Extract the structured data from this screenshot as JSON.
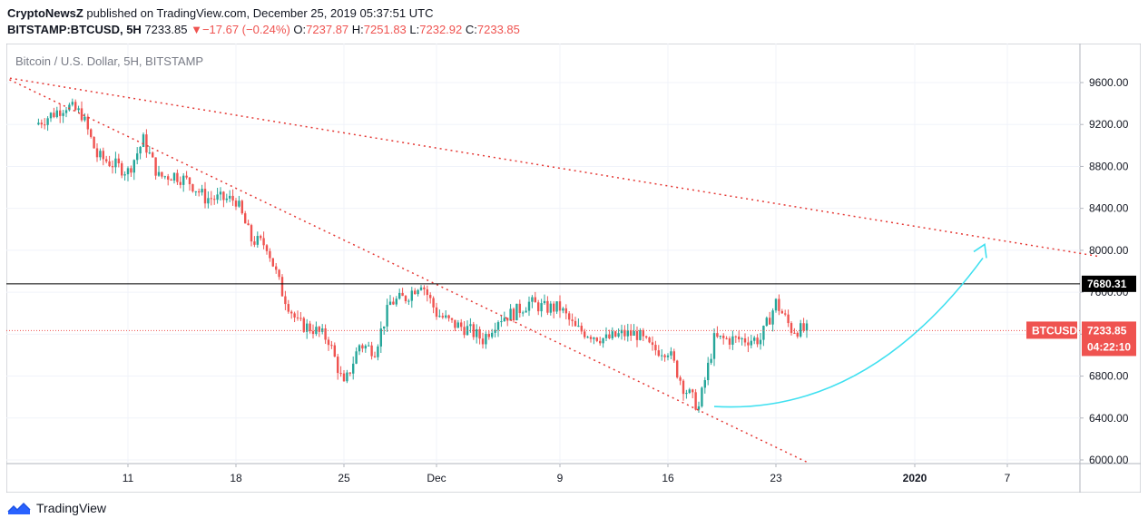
{
  "header": {
    "author": "CryptoNewsZ",
    "published_text": " published on TradingView.com, December 25, 2019 05:37:51 UTC",
    "symbol": "BITSTAMP:BTCUSD, 5H",
    "last": "7233.85",
    "change_arrow": "▼",
    "change": "−17.67 (−0.24%)",
    "o_label": "O:",
    "o_value": "7237.87",
    "h_label": "H:",
    "h_value": "7251.83",
    "l_label": "L:",
    "l_value": "7232.92",
    "c_label": "C:",
    "c_value": "7233.85"
  },
  "chart_title": "Bitcoin / U.S. Dollar, 5H, BITSTAMP",
  "footer": {
    "brand": "TradingView",
    "logo_icon": "tradingview-logo-icon"
  },
  "colors": {
    "up": "#26a69a",
    "down": "#ef5350",
    "trend": "#e53935",
    "curve": "#40e0f0",
    "level": "#000000"
  },
  "chart_data": {
    "type": "candlestick",
    "title": "Bitcoin / U.S. Dollar, 5H, BITSTAMP",
    "timeframe": "5H",
    "ylim": [
      6000,
      9800
    ],
    "y_ticks": [
      "9600.00",
      "9200.00",
      "8800.00",
      "8400.00",
      "8000.00",
      "7600.00",
      "7200.00",
      "6800.00",
      "6400.00",
      "6000.00"
    ],
    "x_ticks": [
      "11",
      "18",
      "25",
      "Dec",
      "9",
      "16",
      "23",
      "2020",
      "7"
    ],
    "grid": true,
    "price_path": [
      {
        "date": "2019-11-05",
        "close": 9200
      },
      {
        "date": "2019-11-07",
        "close": 9380
      },
      {
        "date": "2019-11-08",
        "close": 9300
      },
      {
        "date": "2019-11-09",
        "close": 8900
      },
      {
        "date": "2019-11-11",
        "close": 8750
      },
      {
        "date": "2019-11-12",
        "close": 9050
      },
      {
        "date": "2019-11-13",
        "close": 8700
      },
      {
        "date": "2019-11-14",
        "close": 8720
      },
      {
        "date": "2019-11-15",
        "close": 8650
      },
      {
        "date": "2019-11-16",
        "close": 8500
      },
      {
        "date": "2019-11-18",
        "close": 8480
      },
      {
        "date": "2019-11-19",
        "close": 8100
      },
      {
        "date": "2019-11-20",
        "close": 8050
      },
      {
        "date": "2019-11-21",
        "close": 7600
      },
      {
        "date": "2019-11-22",
        "close": 7300
      },
      {
        "date": "2019-11-23",
        "close": 7250
      },
      {
        "date": "2019-11-24",
        "close": 7150
      },
      {
        "date": "2019-11-25",
        "close": 6700
      },
      {
        "date": "2019-11-26",
        "close": 7100
      },
      {
        "date": "2019-11-27",
        "close": 7050
      },
      {
        "date": "2019-11-28",
        "close": 7500
      },
      {
        "date": "2019-11-29",
        "close": 7550
      },
      {
        "date": "2019-11-30",
        "close": 7700
      },
      {
        "date": "2019-12-01",
        "close": 7400
      },
      {
        "date": "2019-12-02",
        "close": 7300
      },
      {
        "date": "2019-12-03",
        "close": 7250
      },
      {
        "date": "2019-12-04",
        "close": 7150
      },
      {
        "date": "2019-12-05",
        "close": 7350
      },
      {
        "date": "2019-12-06",
        "close": 7400
      },
      {
        "date": "2019-12-07",
        "close": 7500
      },
      {
        "date": "2019-12-08",
        "close": 7450
      },
      {
        "date": "2019-12-09",
        "close": 7450
      },
      {
        "date": "2019-12-10",
        "close": 7250
      },
      {
        "date": "2019-12-11",
        "close": 7200
      },
      {
        "date": "2019-12-12",
        "close": 7150
      },
      {
        "date": "2019-12-13",
        "close": 7200
      },
      {
        "date": "2019-12-14",
        "close": 7200
      },
      {
        "date": "2019-12-15",
        "close": 7050
      },
      {
        "date": "2019-12-16",
        "close": 7050
      },
      {
        "date": "2019-12-17",
        "close": 6700
      },
      {
        "date": "2019-12-18",
        "close": 6500
      },
      {
        "date": "2019-12-19",
        "close": 7150
      },
      {
        "date": "2019-12-20",
        "close": 7150
      },
      {
        "date": "2019-12-21",
        "close": 7150
      },
      {
        "date": "2019-12-22",
        "close": 7150
      },
      {
        "date": "2019-12-23",
        "close": 7500
      },
      {
        "date": "2019-12-24",
        "close": 7250
      },
      {
        "date": "2019-12-25",
        "close": 7233.85
      }
    ],
    "trendlines": [
      {
        "start": {
          "date": "2019-11-03",
          "price": 9650
        },
        "end": {
          "date": "2020-01-13",
          "price": 7940
        }
      },
      {
        "start": {
          "date": "2019-11-03",
          "price": 9650
        },
        "end": {
          "date": "2019-12-25",
          "price": 5980
        }
      }
    ],
    "horizontal_level": {
      "price": 7680.31,
      "label": "7680.31"
    },
    "current_price": {
      "symbol": "BTCUSD",
      "price": 7233.85,
      "label": "7233.85",
      "countdown": "04:22:10"
    },
    "projection_curve": {
      "start": {
        "date": "2019-12-19",
        "price": 6510
      },
      "end": {
        "date": "2020-01-06",
        "price": 8030
      },
      "color": "#40e0f0"
    }
  }
}
